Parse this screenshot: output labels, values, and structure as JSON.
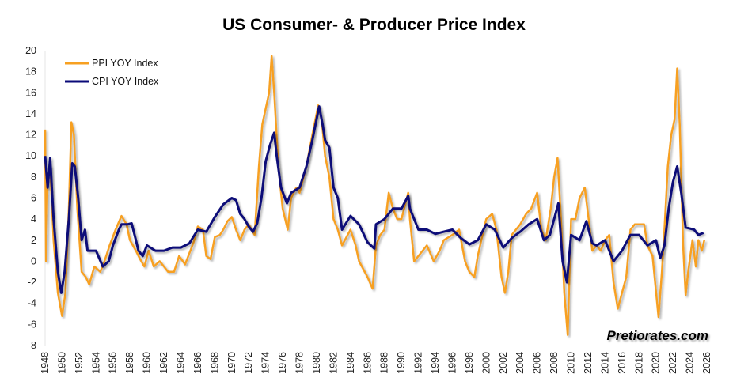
{
  "chart_data": {
    "type": "line",
    "title": "US Consumer- & Producer Price Index",
    "xlabel": "",
    "ylabel": "",
    "ylim": [
      -8,
      20
    ],
    "xlim": [
      1948,
      2026
    ],
    "yticks": [
      "20",
      "18",
      "16",
      "14",
      "12",
      "10",
      "8",
      "6",
      "4",
      "2",
      "0",
      "-2",
      "-4",
      "-6",
      "-8"
    ],
    "xticks": [
      "1948",
      "1950",
      "1952",
      "1954",
      "1956",
      "1958",
      "1960",
      "1962",
      "1964",
      "1966",
      "1968",
      "1970",
      "1972",
      "1974",
      "1976",
      "1978",
      "1980",
      "1982",
      "1984",
      "1986",
      "1988",
      "1990",
      "1992",
      "1994",
      "1996",
      "1998",
      "2000",
      "2002",
      "2004",
      "2006",
      "2008",
      "2010",
      "2012",
      "2014",
      "2016",
      "2018",
      "2020",
      "2022",
      "2024",
      "2026"
    ],
    "legend_position": "top-left",
    "grid": false,
    "colors": {
      "ppi": "#F7A021",
      "cpi": "#0A0A78"
    },
    "series": [
      {
        "name": "PPI YOY Index",
        "points": [
          [
            1948,
            12.5
          ],
          [
            1948.1,
            0
          ],
          [
            1948.3,
            8
          ],
          [
            1948.6,
            9
          ],
          [
            1949,
            2
          ],
          [
            1949.5,
            -3
          ],
          [
            1950,
            -5.2
          ],
          [
            1950.4,
            -3
          ],
          [
            1950.8,
            5
          ],
          [
            1951.1,
            13.2
          ],
          [
            1951.4,
            12
          ],
          [
            1951.8,
            5
          ],
          [
            1952.3,
            -1
          ],
          [
            1952.8,
            -1.5
          ],
          [
            1953.2,
            -2.2
          ],
          [
            1953.8,
            -0.5
          ],
          [
            1954.5,
            -1
          ],
          [
            1955,
            0
          ],
          [
            1955.6,
            1.5
          ],
          [
            1956.3,
            3
          ],
          [
            1957,
            4.3
          ],
          [
            1957.6,
            3.5
          ],
          [
            1958,
            2
          ],
          [
            1958.7,
            1
          ],
          [
            1959.2,
            0.2
          ],
          [
            1959.7,
            -0.5
          ],
          [
            1960.2,
            1
          ],
          [
            1960.8,
            -0.5
          ],
          [
            1961.5,
            0
          ],
          [
            1962,
            -0.5
          ],
          [
            1962.5,
            -1
          ],
          [
            1963.2,
            -1
          ],
          [
            1963.8,
            0.5
          ],
          [
            1964.5,
            -0.3
          ],
          [
            1965.5,
            1.8
          ],
          [
            1966,
            3.3
          ],
          [
            1966.6,
            3
          ],
          [
            1967,
            0.5
          ],
          [
            1967.5,
            0.2
          ],
          [
            1968,
            2.3
          ],
          [
            1968.6,
            2.5
          ],
          [
            1969,
            3
          ],
          [
            1969.5,
            3.8
          ],
          [
            1970,
            4.2
          ],
          [
            1970.5,
            3
          ],
          [
            1971,
            2
          ],
          [
            1971.5,
            3
          ],
          [
            1972,
            3.5
          ],
          [
            1972.7,
            2.5
          ],
          [
            1973.2,
            9
          ],
          [
            1973.6,
            13
          ],
          [
            1974,
            14.5
          ],
          [
            1974.4,
            16
          ],
          [
            1974.7,
            19.5
          ],
          [
            1975,
            16
          ],
          [
            1975.5,
            9
          ],
          [
            1976,
            5
          ],
          [
            1976.6,
            3
          ],
          [
            1977,
            6
          ],
          [
            1977.6,
            7
          ],
          [
            1978,
            6.5
          ],
          [
            1978.8,
            9
          ],
          [
            1979.5,
            12
          ],
          [
            1980.2,
            14.8
          ],
          [
            1980.6,
            13.5
          ],
          [
            1981,
            10
          ],
          [
            1981.5,
            8
          ],
          [
            1982,
            4
          ],
          [
            1982.5,
            3
          ],
          [
            1983,
            1.5
          ],
          [
            1984,
            3
          ],
          [
            1984.6,
            1.5
          ],
          [
            1985,
            0
          ],
          [
            1986,
            -1.5
          ],
          [
            1986.6,
            -2.6
          ],
          [
            1987,
            1.5
          ],
          [
            1987.5,
            2.5
          ],
          [
            1988,
            3
          ],
          [
            1988.5,
            6.5
          ],
          [
            1989,
            5
          ],
          [
            1989.5,
            4
          ],
          [
            1990,
            4
          ],
          [
            1990.8,
            6.5
          ],
          [
            1991,
            4
          ],
          [
            1991.5,
            0
          ],
          [
            1992,
            0.5
          ],
          [
            1993,
            1.5
          ],
          [
            1993.8,
            0
          ],
          [
            1994.5,
            1
          ],
          [
            1995,
            2
          ],
          [
            1996,
            2.5
          ],
          [
            1996.8,
            3
          ],
          [
            1997.5,
            0
          ],
          [
            1998,
            -1
          ],
          [
            1998.6,
            -1.5
          ],
          [
            1999,
            0.5
          ],
          [
            1999.7,
            3
          ],
          [
            2000,
            4
          ],
          [
            2000.7,
            4.5
          ],
          [
            2001.2,
            3
          ],
          [
            2001.8,
            -1.5
          ],
          [
            2002.2,
            -3
          ],
          [
            2002.6,
            -1
          ],
          [
            2003,
            2.5
          ],
          [
            2003.5,
            3
          ],
          [
            2004,
            3.5
          ],
          [
            2004.7,
            4.5
          ],
          [
            2005.3,
            5
          ],
          [
            2006,
            6.5
          ],
          [
            2006.5,
            3
          ],
          [
            2007,
            2
          ],
          [
            2007.6,
            5
          ],
          [
            2008,
            8
          ],
          [
            2008.4,
            9.8
          ],
          [
            2008.8,
            4
          ],
          [
            2009.2,
            -3
          ],
          [
            2009.6,
            -7
          ],
          [
            2010,
            4
          ],
          [
            2010.5,
            4
          ],
          [
            2011,
            6
          ],
          [
            2011.6,
            7
          ],
          [
            2012,
            4.5
          ],
          [
            2012.5,
            1
          ],
          [
            2013,
            1.5
          ],
          [
            2013.5,
            1
          ],
          [
            2014,
            2
          ],
          [
            2014.5,
            2.5
          ],
          [
            2015,
            -2
          ],
          [
            2015.5,
            -4.5
          ],
          [
            2016,
            -3
          ],
          [
            2016.5,
            -1.5
          ],
          [
            2017,
            3
          ],
          [
            2017.5,
            3.5
          ],
          [
            2018,
            3.5
          ],
          [
            2018.6,
            3.5
          ],
          [
            2019,
            1.5
          ],
          [
            2019.6,
            0.5
          ],
          [
            2020.3,
            -5.3
          ],
          [
            2020.7,
            -1
          ],
          [
            2021,
            3
          ],
          [
            2021.4,
            9
          ],
          [
            2021.8,
            12
          ],
          [
            2022.2,
            13.5
          ],
          [
            2022.5,
            18.3
          ],
          [
            2022.8,
            13
          ],
          [
            2023.2,
            1.5
          ],
          [
            2023.5,
            -3.2
          ],
          [
            2023.8,
            -1
          ],
          [
            2024.3,
            2
          ],
          [
            2024.7,
            -0.5
          ],
          [
            2025,
            2
          ],
          [
            2025.4,
            1
          ],
          [
            2025.7,
            2
          ]
        ]
      },
      {
        "name": "CPI YOY Index",
        "points": [
          [
            1948,
            10
          ],
          [
            1948.3,
            7
          ],
          [
            1948.6,
            9.8
          ],
          [
            1949,
            4
          ],
          [
            1949.5,
            -1
          ],
          [
            1949.9,
            -3
          ],
          [
            1950.3,
            -1
          ],
          [
            1950.8,
            4
          ],
          [
            1951.2,
            9.3
          ],
          [
            1951.5,
            9
          ],
          [
            1951.9,
            6
          ],
          [
            1952.3,
            2
          ],
          [
            1952.7,
            3
          ],
          [
            1953,
            1
          ],
          [
            1954,
            1
          ],
          [
            1954.8,
            -0.5
          ],
          [
            1955.5,
            0
          ],
          [
            1956,
            1.5
          ],
          [
            1956.7,
            3
          ],
          [
            1957,
            3.5
          ],
          [
            1957.7,
            3.5
          ],
          [
            1958.2,
            3.6
          ],
          [
            1958.7,
            2
          ],
          [
            1959,
            1
          ],
          [
            1959.5,
            0.5
          ],
          [
            1960,
            1.5
          ],
          [
            1961,
            1
          ],
          [
            1962,
            1
          ],
          [
            1963,
            1.3
          ],
          [
            1964,
            1.3
          ],
          [
            1965,
            1.7
          ],
          [
            1966,
            3
          ],
          [
            1967,
            2.8
          ],
          [
            1968,
            4.2
          ],
          [
            1969,
            5.4
          ],
          [
            1970,
            6
          ],
          [
            1970.5,
            5.8
          ],
          [
            1971,
            4.5
          ],
          [
            1971.5,
            4
          ],
          [
            1972,
            3.3
          ],
          [
            1972.5,
            2.8
          ],
          [
            1973,
            3.6
          ],
          [
            1973.5,
            6
          ],
          [
            1974,
            9.5
          ],
          [
            1974.5,
            11
          ],
          [
            1975,
            12.2
          ],
          [
            1975.3,
            10
          ],
          [
            1975.8,
            7
          ],
          [
            1976.5,
            5.5
          ],
          [
            1977,
            6.5
          ],
          [
            1978,
            7
          ],
          [
            1978.8,
            9
          ],
          [
            1979.5,
            11.5
          ],
          [
            1980.3,
            14.7
          ],
          [
            1980.7,
            13
          ],
          [
            1981,
            11.5
          ],
          [
            1981.5,
            10.8
          ],
          [
            1982,
            7
          ],
          [
            1982.5,
            6
          ],
          [
            1983,
            3
          ],
          [
            1984,
            4.3
          ],
          [
            1985,
            3.5
          ],
          [
            1986,
            1.8
          ],
          [
            1986.8,
            1.2
          ],
          [
            1987,
            3.5
          ],
          [
            1988,
            4
          ],
          [
            1989,
            5
          ],
          [
            1990,
            5
          ],
          [
            1990.8,
            6.2
          ],
          [
            1991,
            5
          ],
          [
            1992,
            3
          ],
          [
            1993,
            3
          ],
          [
            1994,
            2.6
          ],
          [
            1995,
            2.8
          ],
          [
            1996,
            3
          ],
          [
            1997,
            2.2
          ],
          [
            1998,
            1.6
          ],
          [
            1999,
            2
          ],
          [
            2000,
            3.5
          ],
          [
            2001,
            3
          ],
          [
            2002,
            1.3
          ],
          [
            2003,
            2.2
          ],
          [
            2004,
            2.8
          ],
          [
            2005,
            3.5
          ],
          [
            2006,
            4
          ],
          [
            2006.8,
            2
          ],
          [
            2007.5,
            2.5
          ],
          [
            2008.5,
            5.5
          ],
          [
            2009,
            0
          ],
          [
            2009.5,
            -2
          ],
          [
            2010,
            2.5
          ],
          [
            2011,
            2
          ],
          [
            2011.8,
            3.8
          ],
          [
            2012.5,
            1.7
          ],
          [
            2013,
            1.5
          ],
          [
            2014,
            2
          ],
          [
            2015,
            0
          ],
          [
            2016,
            1
          ],
          [
            2017,
            2.5
          ],
          [
            2018,
            2.5
          ],
          [
            2019,
            1.5
          ],
          [
            2020,
            2
          ],
          [
            2020.5,
            0.3
          ],
          [
            2021,
            1.5
          ],
          [
            2021.5,
            5
          ],
          [
            2022,
            7.5
          ],
          [
            2022.5,
            9
          ],
          [
            2023,
            6.4
          ],
          [
            2023.5,
            3.2
          ],
          [
            2024,
            3.1
          ],
          [
            2024.5,
            3
          ],
          [
            2025,
            2.5
          ],
          [
            2025.6,
            2.7
          ]
        ]
      }
    ]
  },
  "legend": {
    "ppi": "PPI YOY Index",
    "cpi": "CPI YOY Index"
  },
  "watermark": "Pretiorates.com"
}
